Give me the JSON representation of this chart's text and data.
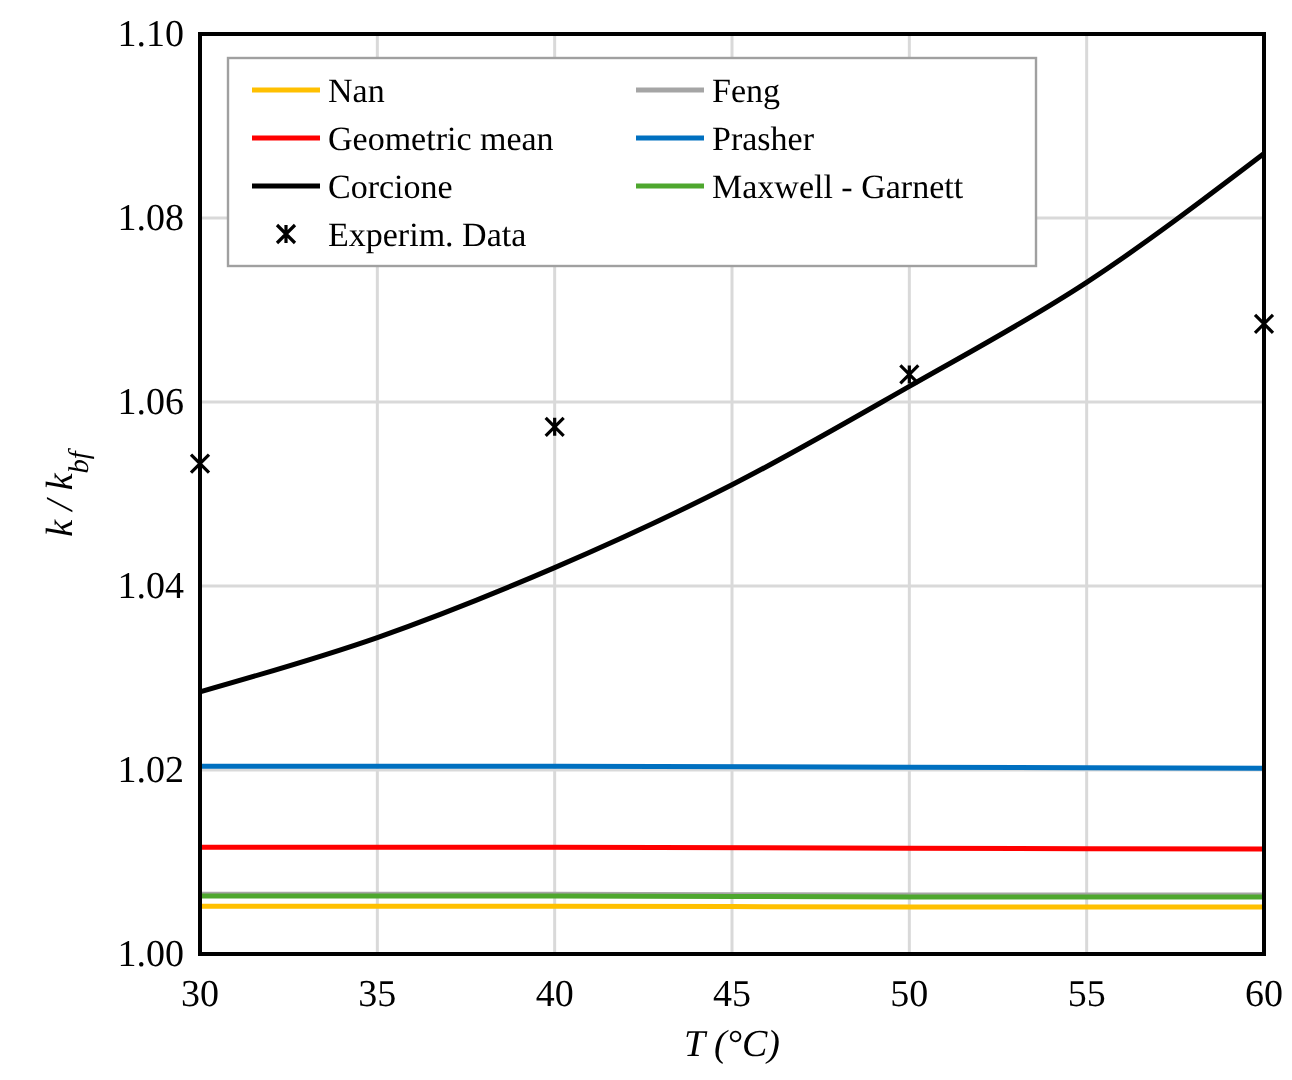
{
  "chart_data": {
    "type": "line",
    "xlabel": "T (°C)",
    "ylabel": "k / k$_{bf}$",
    "xlim": [
      30,
      60
    ],
    "ylim": [
      1.0,
      1.1
    ],
    "xticks": [
      30,
      35,
      40,
      45,
      50,
      55,
      60
    ],
    "yticks": [
      {
        "value": 1.0,
        "label": "1.00"
      },
      {
        "value": 1.02,
        "label": "1.02"
      },
      {
        "value": 1.04,
        "label": "1.04"
      },
      {
        "value": 1.06,
        "label": "1.06"
      },
      {
        "value": 1.08,
        "label": "1.08"
      },
      {
        "value": 1.1,
        "label": "1.10"
      }
    ],
    "grid": true,
    "legend": "top left",
    "marker": "none",
    "line_style": "solid",
    "series": [
      {
        "name": "Nan",
        "color": "#ffc000",
        "x": [
          30,
          40,
          50,
          60
        ],
        "values": [
          1.0052,
          1.0052,
          1.0051,
          1.0051
        ]
      },
      {
        "name": "Feng",
        "color": "#a5a5a5",
        "x": [
          30,
          40,
          50,
          60
        ],
        "values": [
          1.0065,
          1.0065,
          1.0064,
          1.0064
        ]
      },
      {
        "name": "Geometric mean",
        "color": "#ff0000",
        "x": [
          30,
          40,
          50,
          60
        ],
        "values": [
          1.0116,
          1.0116,
          1.0115,
          1.0114
        ]
      },
      {
        "name": "Prasher",
        "color": "#0070c0",
        "x": [
          30,
          40,
          50,
          60
        ],
        "values": [
          1.0204,
          1.0204,
          1.0203,
          1.0202
        ]
      },
      {
        "name": "Corcione",
        "color": "#000000",
        "x": [
          30,
          35,
          40,
          45,
          50,
          55,
          60
        ],
        "values": [
          1.0285,
          1.0344,
          1.042,
          1.051,
          1.0617,
          1.073,
          1.087
        ]
      },
      {
        "name": "Maxwell - Garnett",
        "color": "#4ea72e",
        "x": [
          30,
          40,
          50,
          60
        ],
        "values": [
          1.0063,
          1.0063,
          1.0062,
          1.0062
        ]
      },
      {
        "name": "Experim. Data",
        "type": "scatter",
        "marker": "cross",
        "color": "#000000",
        "x": [
          30,
          40,
          50,
          60
        ],
        "values": [
          1.0533,
          1.0573,
          1.063,
          1.0685
        ]
      }
    ]
  }
}
